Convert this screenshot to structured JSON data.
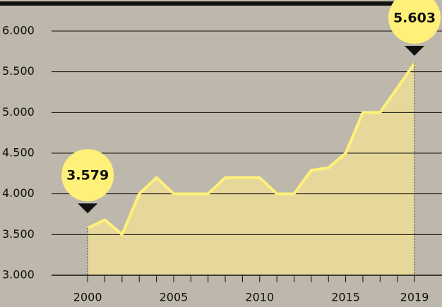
{
  "chart_data": {
    "type": "area",
    "x": [
      2000,
      2001,
      2002,
      2003,
      2004,
      2005,
      2006,
      2007,
      2008,
      2009,
      2010,
      2011,
      2012,
      2013,
      2014,
      2015,
      2016,
      2017,
      2018,
      2019
    ],
    "series": [
      {
        "color": "#fff07a",
        "fill": "#e6d89b",
        "values": [
          3579,
          3680,
          3500,
          4000,
          4200,
          4000,
          4000,
          4000,
          4200,
          4200,
          4200,
          4000,
          4000,
          4290,
          4320,
          4500,
          5000,
          5000,
          5300,
          5603
        ],
        "value_labels": [
          "3.579",
          null,
          null,
          null,
          null,
          null,
          null,
          null,
          null,
          null,
          null,
          null,
          null,
          null,
          null,
          null,
          null,
          null,
          null,
          "5.603"
        ]
      }
    ],
    "xlim": [
      1997.9,
      2020.6
    ],
    "xticks": [
      2000,
      2005,
      2010,
      2015,
      2019
    ],
    "ylim": [
      3000,
      6000
    ],
    "yticks": [
      {
        "value": 3000,
        "label": "3.000"
      },
      {
        "value": 3500,
        "label": "3.500"
      },
      {
        "value": 4000,
        "label": "4.000"
      },
      {
        "value": 4500,
        "label": "4.500"
      },
      {
        "value": 5000,
        "label": "5.000"
      },
      {
        "value": 5500,
        "label": "5.500"
      },
      {
        "value": 6000,
        "label": "6.000"
      }
    ],
    "grid": true
  }
}
